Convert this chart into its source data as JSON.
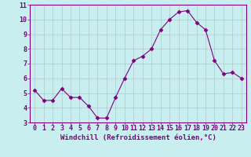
{
  "x": [
    0,
    1,
    2,
    3,
    4,
    5,
    6,
    7,
    8,
    9,
    10,
    11,
    12,
    13,
    14,
    15,
    16,
    17,
    18,
    19,
    20,
    21,
    22,
    23
  ],
  "y": [
    5.2,
    4.5,
    4.5,
    5.3,
    4.7,
    4.7,
    4.1,
    3.3,
    3.3,
    4.7,
    6.0,
    7.2,
    7.5,
    8.0,
    9.3,
    10.0,
    10.5,
    10.6,
    9.8,
    9.3,
    7.2,
    6.3,
    6.4,
    6.0
  ],
  "line_color": "#800080",
  "marker": "D",
  "marker_size": 2.5,
  "bg_color": "#c8eef0",
  "grid_color": "#b0c8cc",
  "xlabel": "Windchill (Refroidissement éolien,°C)",
  "ylim": [
    3,
    11
  ],
  "xlim": [
    -0.5,
    23.5
  ],
  "yticks": [
    3,
    4,
    5,
    6,
    7,
    8,
    9,
    10,
    11
  ],
  "xticks": [
    0,
    1,
    2,
    3,
    4,
    5,
    6,
    7,
    8,
    9,
    10,
    11,
    12,
    13,
    14,
    15,
    16,
    17,
    18,
    19,
    20,
    21,
    22,
    23
  ],
  "tick_color": "#800080",
  "label_color": "#800080",
  "spine_color": "#800080",
  "font_size_label": 6.5,
  "font_size_tick": 6.0
}
